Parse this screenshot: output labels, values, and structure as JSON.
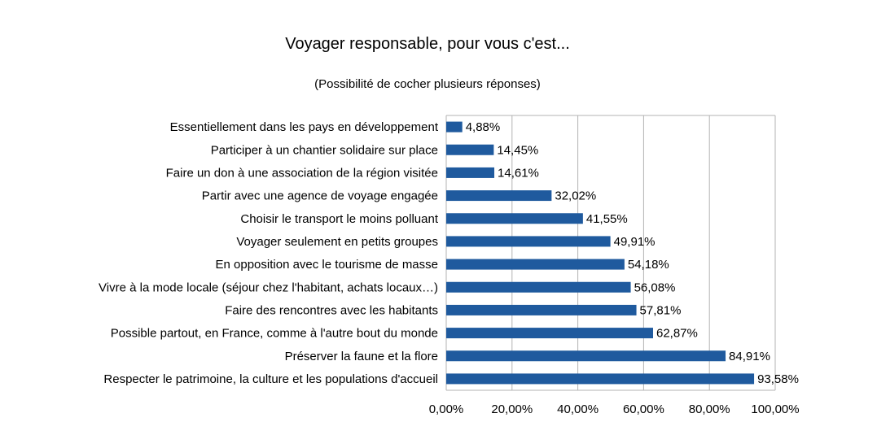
{
  "chart_data": {
    "type": "bar",
    "orientation": "horizontal",
    "title": "Voyager responsable, pour vous c'est...",
    "subtitle": "(Possibilité de cocher plusieurs réponses)",
    "xlabel": "",
    "ylabel": "",
    "xlim": [
      0,
      100
    ],
    "x_ticks": [
      "0,00%",
      "20,00%",
      "40,00%",
      "60,00%",
      "80,00%",
      "100,00%"
    ],
    "grid": true,
    "legend": "none",
    "bar_color": "#1f5a9e",
    "categories": [
      "Essentiellement dans les pays en développement",
      "Participer à un chantier solidaire sur place",
      "Faire un don à une association de la région visitée",
      "Partir avec une agence de voyage engagée",
      "Choisir le transport le moins polluant",
      "Voyager seulement en petits groupes",
      "En opposition avec le tourisme de masse",
      "Vivre à la mode locale (séjour chez l'habitant, achats locaux…)",
      "Faire des rencontres avec les habitants",
      "Possible partout, en France, comme à l'autre bout du monde",
      "Préserver la faune et la flore",
      "Respecter le patrimoine, la culture et les populations d'accueil"
    ],
    "values": [
      4.88,
      14.45,
      14.61,
      32.02,
      41.55,
      49.91,
      54.18,
      56.08,
      57.81,
      62.87,
      84.91,
      93.58
    ],
    "data_labels": [
      "4,88%",
      "14,45%",
      "14,61%",
      "32,02%",
      "41,55%",
      "49,91%",
      "54,18%",
      "56,08%",
      "57,81%",
      "62,87%",
      "84,91%",
      "93,58%"
    ]
  }
}
